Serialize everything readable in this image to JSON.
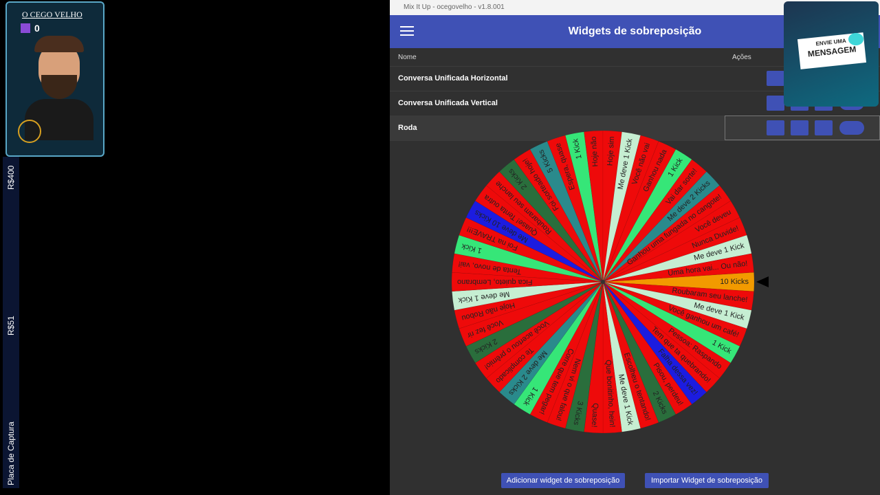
{
  "overlay": {
    "streamer_name": "O CEGO VELHO",
    "viewer_count": "0",
    "goal_top": "R$400",
    "goal_middle": "R$51",
    "capture_label": "Placa de Captura",
    "message_line1": "ENVIE UMA",
    "message_line2": "MENSAGEM"
  },
  "window": {
    "title": "Mix It Up - ocegovelho - v1.8.001"
  },
  "header": {
    "title": "Widgets de sobreposição"
  },
  "table": {
    "columns": [
      "Nome",
      "Ações"
    ],
    "rows": [
      "Conversa Unificada Horizontal",
      "Conversa Unificada Vertical",
      "Roda"
    ]
  },
  "buttons": [
    "Adicionar widget de sobreposição",
    "Importar Widget de sobreposição"
  ],
  "wheel": {
    "segments": [
      {
        "label": "10 Kicks",
        "color": "#f29a00"
      },
      {
        "label": "Roubaram seu lanche!",
        "color": "#ee0a0a"
      },
      {
        "label": "Me deve 1 Kick",
        "color": "#c6eed2"
      },
      {
        "label": "Você ganhou um café!",
        "color": "#ee0a0a"
      },
      {
        "label": "1 Kick",
        "color": "#36e678"
      },
      {
        "label": "Pessoa: Raspando",
        "color": "#ee0a0a"
      },
      {
        "label": "Tem que ta quebrando!",
        "color": "#ee0a0a"
      },
      {
        "label": "Falha dessa vez!",
        "color": "#1c1ce0"
      },
      {
        "label": "Pisou, perdeu!",
        "color": "#ee0a0a"
      },
      {
        "label": "2 Kicks",
        "color": "#2a6e3c"
      },
      {
        "label": "Escolheu o tentando!",
        "color": "#ee0a0a"
      },
      {
        "label": "Me deve 1 Kick",
        "color": "#c6eed2"
      },
      {
        "label": "Que bonitinho, hein!",
        "color": "#ee0a0a"
      },
      {
        "label": "Quase!",
        "color": "#ee0a0a"
      },
      {
        "label": "3 Kicks",
        "color": "#2a6e3c"
      },
      {
        "label": "Nem vi o que falou!",
        "color": "#ee0a0a"
      },
      {
        "label": "Corre que tem pegar!",
        "color": "#ee0a0a"
      },
      {
        "label": "1 Kick",
        "color": "#36e678"
      },
      {
        "label": "Me deve 2 Kicks",
        "color": "#2a8a8c"
      },
      {
        "label": "Te complicado",
        "color": "#ee0a0a"
      },
      {
        "label": "Você acertou o prêmio!",
        "color": "#ee0a0a"
      },
      {
        "label": "2 Kicks",
        "color": "#2a6e3c"
      },
      {
        "label": "Você fez rir",
        "color": "#ee0a0a"
      },
      {
        "label": "Hoje não Robou",
        "color": "#ee0a0a"
      },
      {
        "label": "Me deve 1 Kick",
        "color": "#c6eed2"
      },
      {
        "label": "Fica quieto, Lembrano",
        "color": "#ee0a0a"
      },
      {
        "label": "Tenta de novo, vai!",
        "color": "#ee0a0a"
      },
      {
        "label": "1 Kick",
        "color": "#36e678"
      },
      {
        "label": "Foi na TRAVE!!!",
        "color": "#ee0a0a"
      },
      {
        "label": "Me deve 10 Kicks",
        "color": "#1c1ce0"
      },
      {
        "label": "Quase! Tenta outra",
        "color": "#ee0a0a"
      },
      {
        "label": "Roubaram seu lanche",
        "color": "#ee0a0a"
      },
      {
        "label": "2 Kicks",
        "color": "#2a6e3c"
      },
      {
        "label": "Foi sorteado hoje!",
        "color": "#ee0a0a"
      },
      {
        "label": "5 Kicks",
        "color": "#2a8a8c"
      },
      {
        "label": "Espera, quase",
        "color": "#ee0a0a"
      },
      {
        "label": "1 Kick",
        "color": "#36e678"
      },
      {
        "label": "Hoje não",
        "color": "#ee0a0a"
      },
      {
        "label": "Hoje sim",
        "color": "#ee0a0a"
      },
      {
        "label": "Me deve 1 Kick",
        "color": "#c6eed2"
      },
      {
        "label": "Você não vai",
        "color": "#ee0a0a"
      },
      {
        "label": "Ganhou nada",
        "color": "#ee0a0a"
      },
      {
        "label": "1 Kick",
        "color": "#36e678"
      },
      {
        "label": "Vai dar sorte!",
        "color": "#ee0a0a"
      },
      {
        "label": "Me deve 2 Kicks",
        "color": "#2a8a8c"
      },
      {
        "label": "Ganhou uma fungada no cangote!",
        "color": "#ee0a0a"
      },
      {
        "label": "Você deveu",
        "color": "#ee0a0a"
      },
      {
        "label": "Nunca Duvide!",
        "color": "#ee0a0a"
      },
      {
        "label": "Me deve 1 Kick",
        "color": "#c6eed2"
      },
      {
        "label": "Uma hora vai... Ou não!",
        "color": "#ee0a0a"
      }
    ]
  }
}
